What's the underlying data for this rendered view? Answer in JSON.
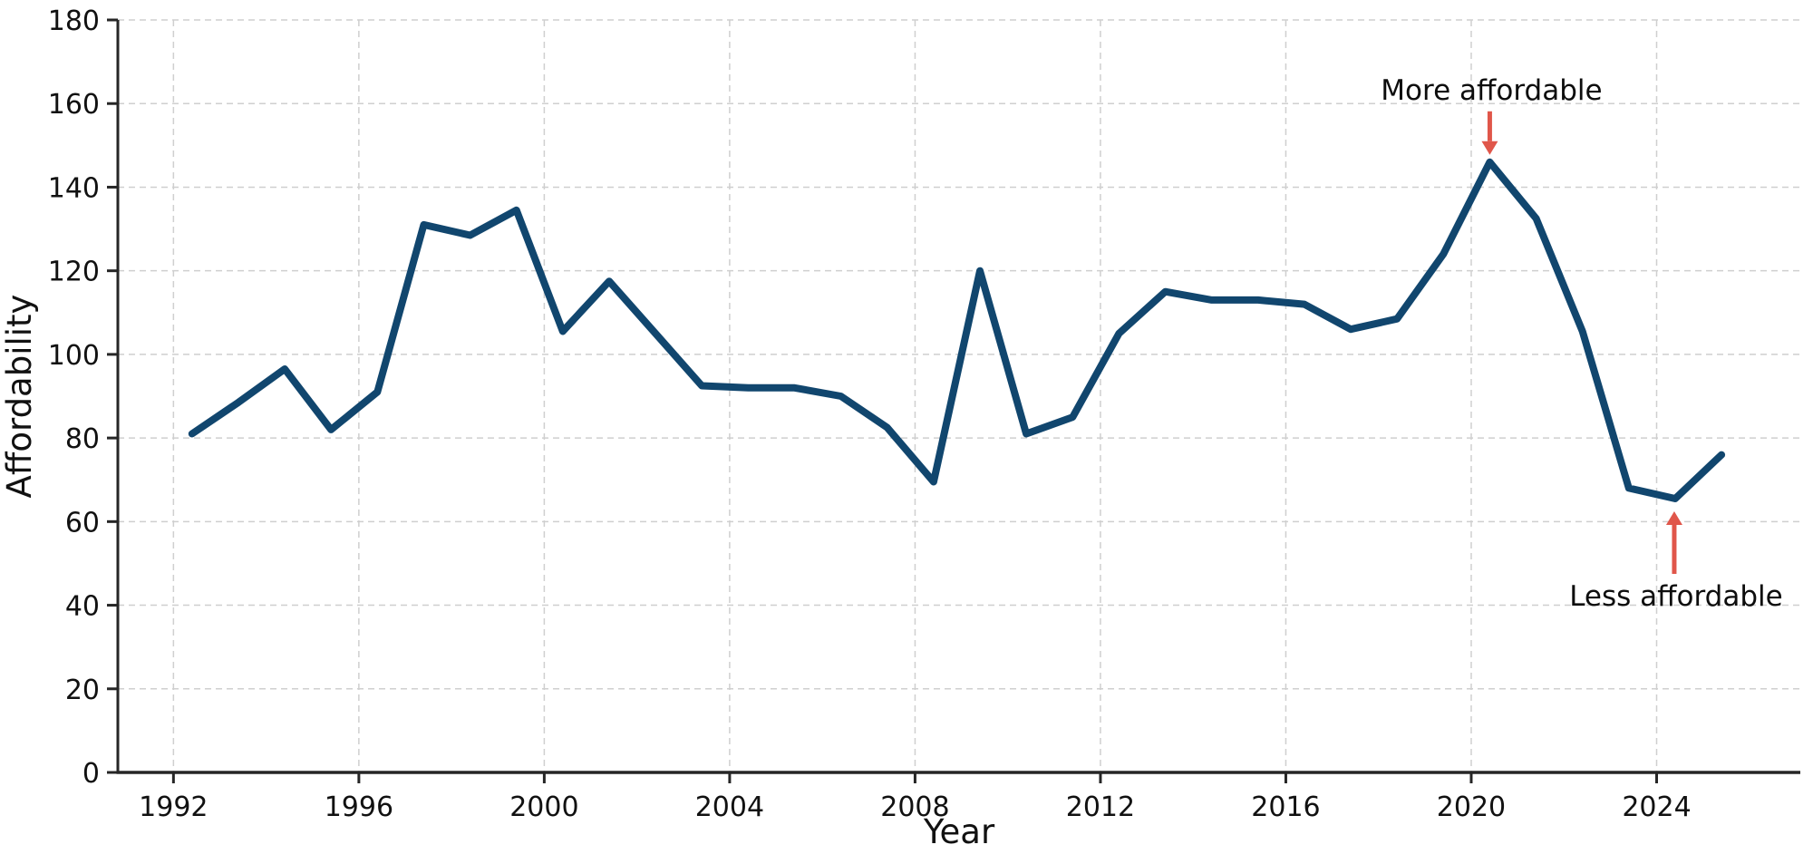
{
  "chart_data": {
    "type": "line",
    "title": "",
    "xlabel": "Year",
    "ylabel": "Affordability",
    "series_name": "Affordability",
    "x": [
      1992.4,
      1993.4,
      1994.4,
      1995.4,
      1996.4,
      1997.4,
      1998.4,
      1999.4,
      2000.4,
      2001.4,
      2002.4,
      2003.4,
      2004.4,
      2005.4,
      2006.4,
      2007.4,
      2008.4,
      2009.4,
      2010.4,
      2011.4,
      2012.4,
      2013.4,
      2014.4,
      2015.4,
      2016.4,
      2017.4,
      2018.4,
      2019.4,
      2020.4,
      2021.4,
      2022.4,
      2023.4,
      2024.4,
      2025.4
    ],
    "values": [
      81,
      88.5,
      96.5,
      82,
      91,
      131,
      128.5,
      134.5,
      105.5,
      117.5,
      105,
      92.5,
      92,
      92,
      90,
      82.5,
      69.5,
      120,
      81,
      85,
      105,
      115,
      113,
      113,
      112,
      106,
      108.5,
      124,
      146,
      132.5,
      105.5,
      68,
      65.5,
      76
    ],
    "xlim": [
      1990.8,
      2027.1
    ],
    "ylim": [
      0,
      180
    ],
    "x_ticks": [
      1992,
      1996,
      2000,
      2004,
      2008,
      2012,
      2016,
      2020,
      2024
    ],
    "y_ticks": [
      0,
      20,
      40,
      60,
      80,
      100,
      120,
      140,
      160,
      180
    ],
    "grid": true,
    "grid_style": "dashed",
    "legend": "none",
    "line_color": "#11466e",
    "line_width": 8,
    "grid_color": "#cfcfcf",
    "spine_color": "#262626",
    "annotation_color": "#e0564a",
    "annotations": [
      {
        "text": "More affordable",
        "x": 2020.4,
        "y": 146,
        "arrow": "down"
      },
      {
        "text": "Less affordable",
        "x": 2024.4,
        "y": 65.5,
        "arrow": "up"
      }
    ]
  }
}
